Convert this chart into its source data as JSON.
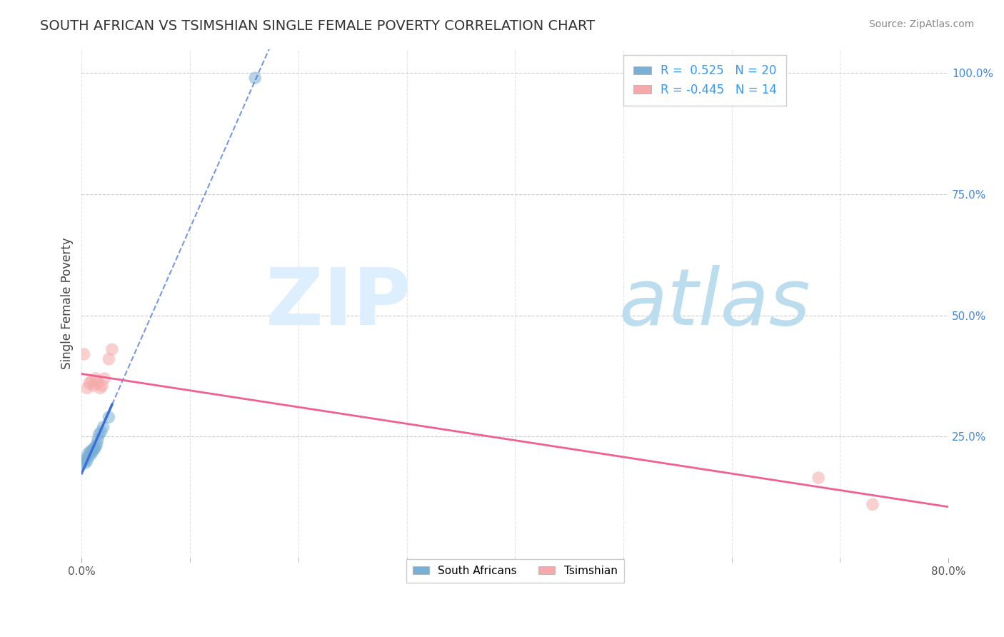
{
  "title": "SOUTH AFRICAN VS TSIMSHIAN SINGLE FEMALE POVERTY CORRELATION CHART",
  "source": "Source: ZipAtlas.com",
  "ylabel": "Single Female Poverty",
  "blue_color": "#7BAFD4",
  "pink_color": "#F4AAAA",
  "line_blue": "#3A6FD8",
  "line_pink": "#F06090",
  "blue_x": [
    0.0,
    0.002,
    0.003,
    0.004,
    0.005,
    0.006,
    0.007,
    0.008,
    0.009,
    0.01,
    0.011,
    0.012,
    0.013,
    0.014,
    0.015,
    0.016,
    0.018,
    0.02,
    0.025,
    0.16
  ],
  "blue_y": [
    0.195,
    0.2,
    0.195,
    0.205,
    0.2,
    0.215,
    0.21,
    0.22,
    0.215,
    0.22,
    0.225,
    0.225,
    0.23,
    0.235,
    0.245,
    0.255,
    0.26,
    0.27,
    0.29,
    0.99
  ],
  "pink_x": [
    0.002,
    0.005,
    0.007,
    0.009,
    0.011,
    0.013,
    0.015,
    0.017,
    0.019,
    0.021,
    0.025,
    0.028,
    0.68,
    0.73
  ],
  "pink_y": [
    0.42,
    0.35,
    0.36,
    0.365,
    0.355,
    0.37,
    0.36,
    0.35,
    0.355,
    0.37,
    0.41,
    0.43,
    0.165,
    0.11
  ],
  "xlim": [
    0.0,
    0.8
  ],
  "ylim": [
    0.0,
    1.05
  ],
  "xtick_positions": [
    0.0,
    0.8
  ],
  "xtick_labels": [
    "0.0%",
    "80.0%"
  ],
  "ytick_positions": [
    0.25,
    0.5,
    0.75,
    1.0
  ],
  "ytick_labels": [
    "25.0%",
    "50.0%",
    "75.0%",
    "100.0%"
  ],
  "legend1_text": "R =  0.525   N = 20",
  "legend2_text": "R = -0.445   N = 14",
  "scatter_size": 160,
  "scatter_alpha": 0.55,
  "grid_color": "#CCCCCC",
  "right_tick_color": "#4488DD",
  "title_color": "#333333",
  "source_color": "#888888",
  "tick_color": "#555555"
}
